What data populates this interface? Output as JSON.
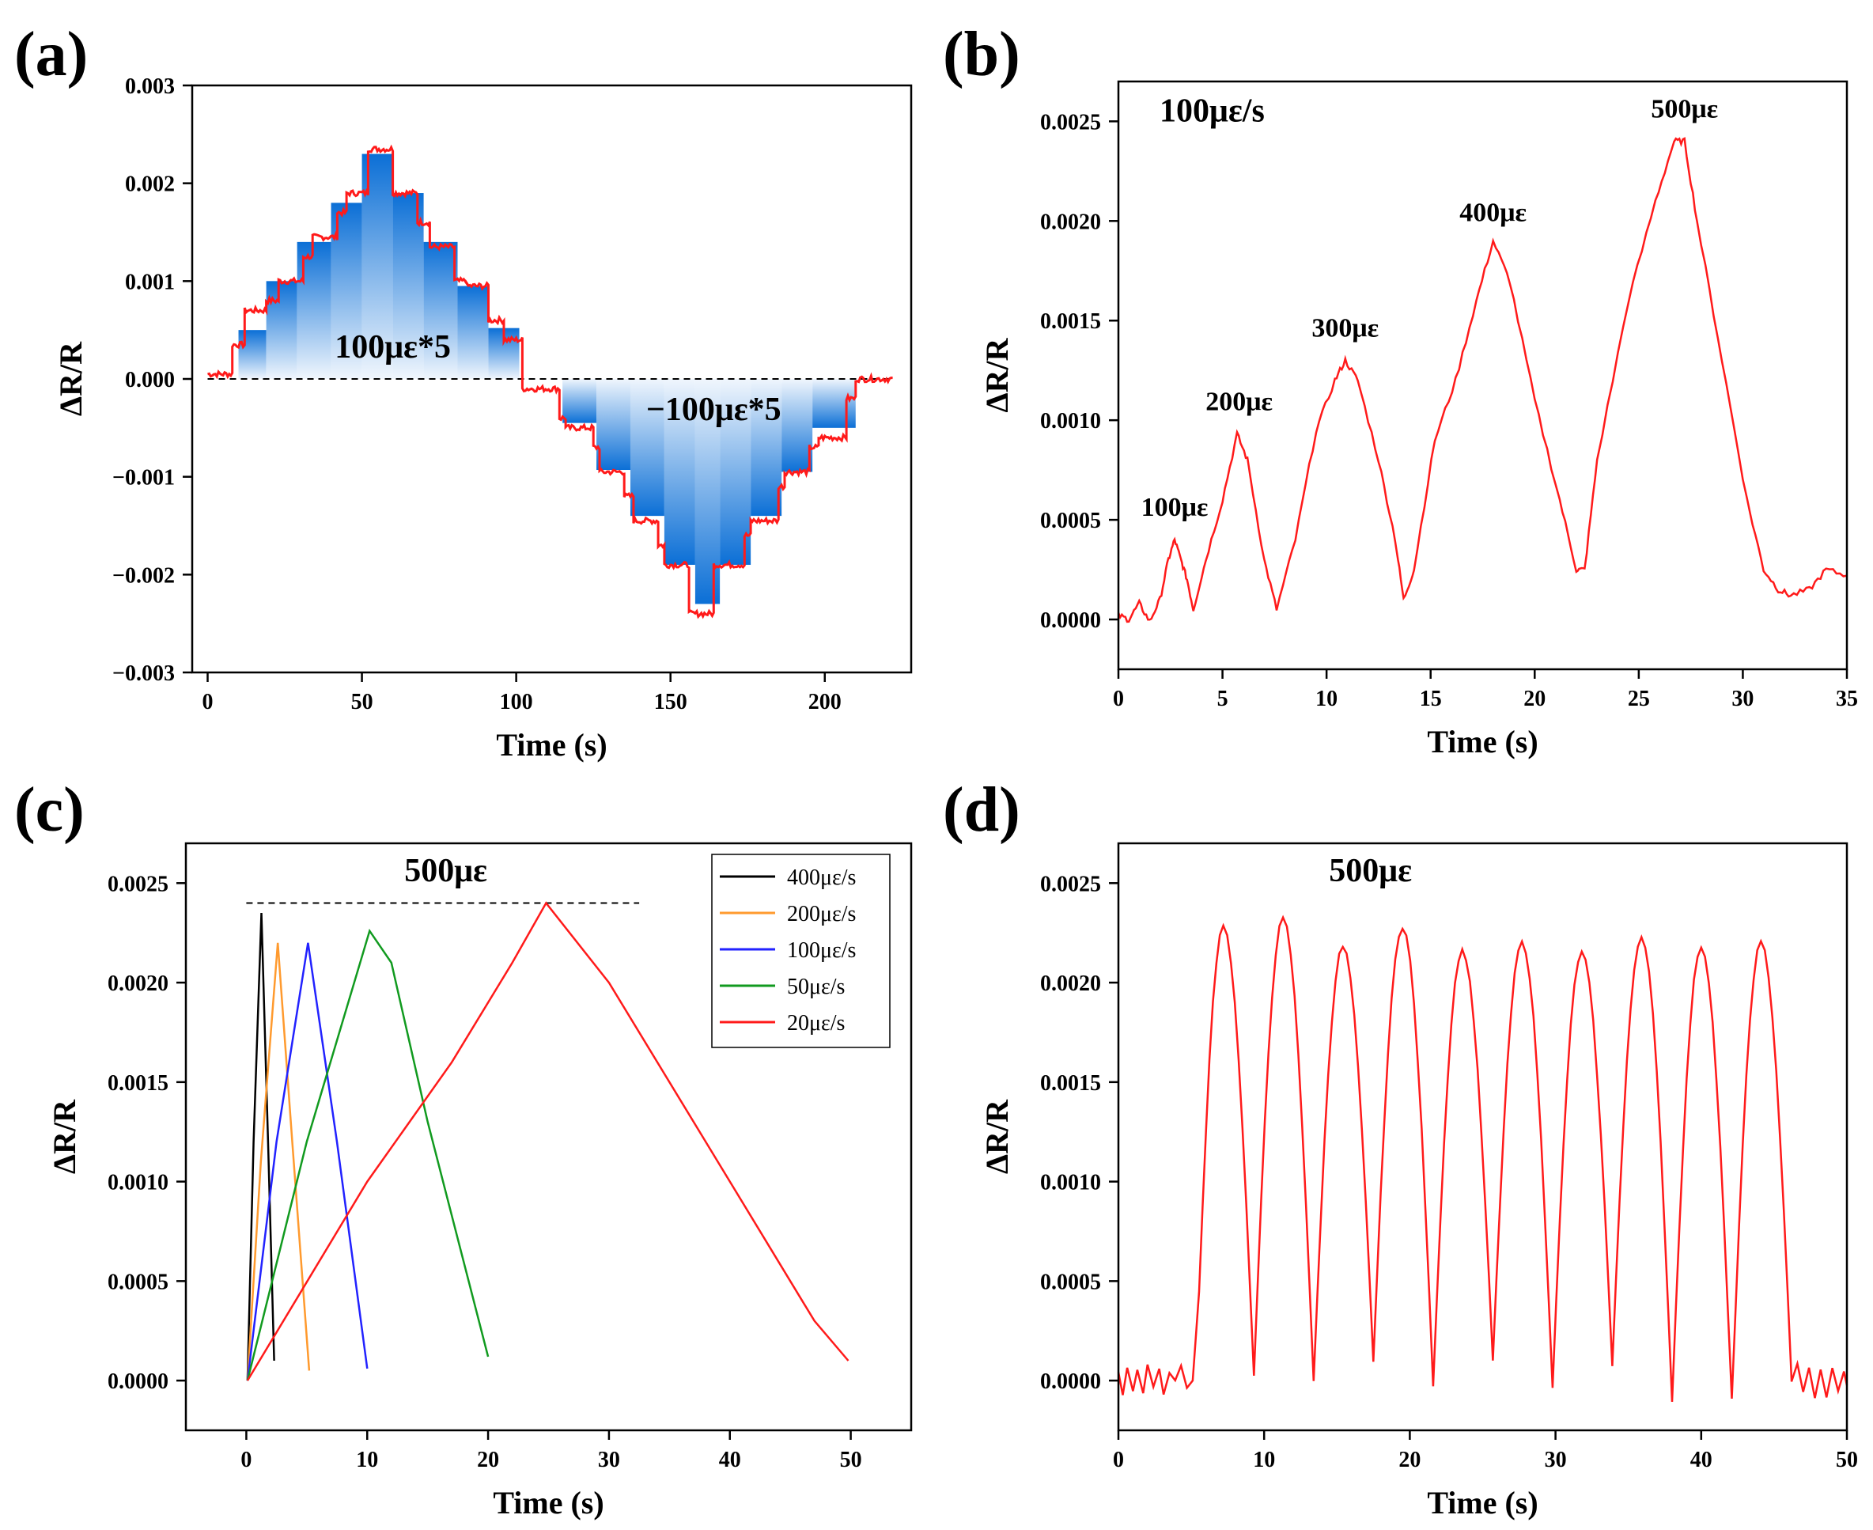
{
  "colors": {
    "red": "#ff1a1a",
    "blue_dark": "#0b6fd6",
    "blue_light": "#dce9f8",
    "black": "#000000",
    "orange": "#ff9a2e",
    "blue_line": "#2222ff",
    "green": "#119a1f"
  },
  "chart_data": [
    {
      "id": "a",
      "panel_label": "(a)",
      "type": "line",
      "title": "",
      "xlabel": "Time (s)",
      "ylabel": "ΔR/R",
      "xlim": [
        -5,
        228
      ],
      "ylim": [
        -0.003,
        0.003
      ],
      "xticks": [
        0,
        50,
        100,
        150,
        200
      ],
      "xtick_labels": [
        "0",
        "50",
        "100",
        "150",
        "200"
      ],
      "yticks": [
        -0.003,
        -0.002,
        -0.001,
        0.0,
        0.001,
        0.002,
        0.003
      ],
      "ytick_labels": [
        "−0.003",
        "−0.002",
        "−0.001",
        "0.000",
        "0.001",
        "0.002",
        "0.003"
      ],
      "step_levels": [
        {
          "t0": 0,
          "t1": 8,
          "v": 5e-05
        },
        {
          "t0": 8,
          "t1": 12,
          "v": 0.00035
        },
        {
          "t0": 12,
          "t1": 19,
          "v": 0.0007
        },
        {
          "t0": 19,
          "t1": 23,
          "v": 0.0008
        },
        {
          "t0": 23,
          "t1": 31,
          "v": 0.001
        },
        {
          "t0": 31,
          "t1": 34,
          "v": 0.00125
        },
        {
          "t0": 34,
          "t1": 42,
          "v": 0.00145
        },
        {
          "t0": 42,
          "t1": 45,
          "v": 0.0017
        },
        {
          "t0": 45,
          "t1": 52,
          "v": 0.0019
        },
        {
          "t0": 52,
          "t1": 60,
          "v": 0.00235
        },
        {
          "t0": 60,
          "t1": 68,
          "v": 0.0019
        },
        {
          "t0": 68,
          "t1": 72,
          "v": 0.0016
        },
        {
          "t0": 72,
          "t1": 80,
          "v": 0.00135
        },
        {
          "t0": 80,
          "t1": 84,
          "v": 0.001
        },
        {
          "t0": 84,
          "t1": 91,
          "v": 0.00095
        },
        {
          "t0": 91,
          "t1": 96,
          "v": 0.0006
        },
        {
          "t0": 96,
          "t1": 102,
          "v": 0.0004
        },
        {
          "t0": 102,
          "t1": 114,
          "v": -0.0001
        },
        {
          "t0": 114,
          "t1": 116,
          "v": -0.0004
        },
        {
          "t0": 116,
          "t1": 125,
          "v": -0.0005
        },
        {
          "t0": 125,
          "t1": 127,
          "v": -0.0007
        },
        {
          "t0": 127,
          "t1": 135,
          "v": -0.00095
        },
        {
          "t0": 135,
          "t1": 138,
          "v": -0.0012
        },
        {
          "t0": 138,
          "t1": 146,
          "v": -0.00145
        },
        {
          "t0": 146,
          "t1": 148,
          "v": -0.0017
        },
        {
          "t0": 148,
          "t1": 156,
          "v": -0.0019
        },
        {
          "t0": 156,
          "t1": 164,
          "v": -0.0024
        },
        {
          "t0": 164,
          "t1": 174,
          "v": -0.0019
        },
        {
          "t0": 174,
          "t1": 176,
          "v": -0.0016
        },
        {
          "t0": 176,
          "t1": 185,
          "v": -0.00145
        },
        {
          "t0": 185,
          "t1": 187,
          "v": -0.0011
        },
        {
          "t0": 187,
          "t1": 195,
          "v": -0.00095
        },
        {
          "t0": 195,
          "t1": 198,
          "v": -0.0007
        },
        {
          "t0": 198,
          "t1": 207,
          "v": -0.0006
        },
        {
          "t0": 207,
          "t1": 210,
          "v": -0.0002
        },
        {
          "t0": 210,
          "t1": 222,
          "v": 0.0
        }
      ],
      "fill_positive": [
        {
          "t0": 10,
          "t1": 19,
          "v": 0.0005
        },
        {
          "t0": 19,
          "t1": 29,
          "v": 0.001
        },
        {
          "t0": 29,
          "t1": 40,
          "v": 0.0014
        },
        {
          "t0": 40,
          "t1": 50,
          "v": 0.0018
        },
        {
          "t0": 50,
          "t1": 60,
          "v": 0.0023
        },
        {
          "t0": 60,
          "t1": 70,
          "v": 0.0019
        },
        {
          "t0": 70,
          "t1": 81,
          "v": 0.0014
        },
        {
          "t0": 81,
          "t1": 91,
          "v": 0.00095
        },
        {
          "t0": 91,
          "t1": 101,
          "v": 0.00052
        }
      ],
      "fill_negative": [
        {
          "t0": 115,
          "t1": 126,
          "v": -0.00045
        },
        {
          "t0": 126,
          "t1": 137,
          "v": -0.00093
        },
        {
          "t0": 137,
          "t1": 148,
          "v": -0.0014
        },
        {
          "t0": 148,
          "t1": 158,
          "v": -0.0019
        },
        {
          "t0": 158,
          "t1": 166,
          "v": -0.0023
        },
        {
          "t0": 166,
          "t1": 176,
          "v": -0.0019
        },
        {
          "t0": 176,
          "t1": 186,
          "v": -0.0014
        },
        {
          "t0": 186,
          "t1": 196,
          "v": -0.00095
        },
        {
          "t0": 196,
          "t1": 210,
          "v": -0.0005
        }
      ],
      "baseline": {
        "y": 0.0,
        "x0": 0,
        "x1": 222
      },
      "annotations": [
        {
          "text": "100με*5",
          "x": 60,
          "y": 0.00022
        },
        {
          "text": "−100με*5",
          "x": 164,
          "y": -0.00042
        }
      ]
    },
    {
      "id": "b",
      "panel_label": "(b)",
      "type": "line",
      "title": "",
      "xlabel": "Time (s)",
      "ylabel": "ΔR/R",
      "xlim": [
        0,
        35
      ],
      "ylim": [
        -0.00025,
        0.0027
      ],
      "xticks": [
        0,
        5,
        10,
        15,
        20,
        25,
        30,
        35
      ],
      "xtick_labels": [
        "0",
        "5",
        "10",
        "15",
        "20",
        "25",
        "30",
        "35"
      ],
      "yticks": [
        0.0,
        0.0005,
        0.001,
        0.0015,
        0.002,
        0.0025
      ],
      "ytick_labels": [
        "0.0000",
        "0.0005",
        "0.0010",
        "0.0015",
        "0.0020",
        "0.0025"
      ],
      "series": [
        {
          "name": "100με/s",
          "color": "#ff1a1a",
          "x": [
            0,
            0.5,
            1.0,
            1.5,
            2.0,
            2.4,
            2.7,
            3.0,
            3.3,
            3.6,
            4.2,
            5.0,
            5.7,
            6.2,
            7.0,
            7.6,
            8.5,
            9.5,
            10.4,
            10.9,
            11.5,
            12.5,
            13.3,
            13.7,
            14.2,
            15.2,
            16.2,
            17.2,
            18.0,
            18.8,
            20.0,
            21.2,
            22.0,
            22.4,
            23.0,
            24.5,
            25.8,
            26.7,
            27.2,
            27.8,
            29.0,
            30.2,
            31.0,
            31.7,
            32.3,
            33.2,
            34.0,
            35.0
          ],
          "y": [
            2e-05,
            0.0,
            8e-05,
            -1e-05,
            0.0001,
            0.0003,
            0.0004,
            0.0003,
            0.0002,
            5e-05,
            0.0003,
            0.0006,
            0.00093,
            0.0008,
            0.0003,
            5e-05,
            0.0004,
            0.00095,
            0.0012,
            0.0013,
            0.0012,
            0.0008,
            0.0004,
            0.0001,
            0.00025,
            0.0009,
            0.0012,
            0.0016,
            0.0019,
            0.0017,
            0.0011,
            0.0006,
            0.00025,
            0.00025,
            0.0008,
            0.0016,
            0.0021,
            0.0024,
            0.0024,
            0.002,
            0.0013,
            0.0006,
            0.00025,
            0.00015,
            0.00012,
            0.00015,
            0.00025,
            0.00022
          ]
        }
      ],
      "annotations": [
        {
          "text": "100με/s",
          "x": 4.5,
          "y": 0.0025,
          "big": true
        },
        {
          "text": "100με",
          "x": 2.7,
          "y": 0.00052
        },
        {
          "text": "200με",
          "x": 5.8,
          "y": 0.00105
        },
        {
          "text": "300με",
          "x": 10.9,
          "y": 0.00142
        },
        {
          "text": "400με",
          "x": 18.0,
          "y": 0.002
        },
        {
          "text": "500με",
          "x": 27.2,
          "y": 0.00252
        }
      ]
    },
    {
      "id": "c",
      "panel_label": "(c)",
      "type": "line",
      "title": "",
      "xlabel": "Time (s)",
      "ylabel": "ΔR/R",
      "xlim": [
        -5,
        55
      ],
      "ylim": [
        -0.00025,
        0.0027
      ],
      "xticks": [
        0,
        10,
        20,
        30,
        40,
        50
      ],
      "xtick_labels": [
        "0",
        "10",
        "20",
        "30",
        "40",
        "50"
      ],
      "yticks": [
        0.0,
        0.0005,
        0.001,
        0.0015,
        0.002,
        0.0025
      ],
      "ytick_labels": [
        "0.0000",
        "0.0005",
        "0.0010",
        "0.0015",
        "0.0020",
        "0.0025"
      ],
      "legend": {
        "position": "top-right"
      },
      "series": [
        {
          "name": "400με/s",
          "color": "#000000",
          "x": [
            0.1,
            0.6,
            1.25,
            1.8,
            2.3
          ],
          "y": [
            0.0,
            0.0012,
            0.00235,
            0.0012,
            0.0001
          ]
        },
        {
          "name": "200με/s",
          "color": "#ff9a2e",
          "x": [
            0.1,
            1.2,
            2.6,
            3.8,
            5.2
          ],
          "y": [
            0.0,
            0.0011,
            0.0022,
            0.0012,
            5e-05
          ]
        },
        {
          "name": "100με/s",
          "color": "#2222ff",
          "x": [
            0.1,
            2.5,
            5.1,
            7.5,
            10.0
          ],
          "y": [
            0.0,
            0.0012,
            0.0022,
            0.0012,
            6e-05
          ]
        },
        {
          "name": "50με/s",
          "color": "#119a1f",
          "x": [
            0.1,
            5.0,
            10.2,
            12.0,
            15.0,
            20.0
          ],
          "y": [
            0.0,
            0.0012,
            0.00226,
            0.0021,
            0.0013,
            0.00012
          ]
        },
        {
          "name": "20με/s",
          "color": "#ff1a1a",
          "x": [
            0.1,
            10.0,
            17.0,
            22.0,
            24.8,
            30.0,
            40.0,
            47.0,
            49.8
          ],
          "y": [
            0.0,
            0.001,
            0.0016,
            0.0021,
            0.0024,
            0.002,
            0.001,
            0.0003,
            0.0001
          ]
        }
      ],
      "reference_line": {
        "y": 0.0024,
        "x0": 0,
        "x1": 32.5
      },
      "annotations": [
        {
          "text": "500με",
          "x": 16.5,
          "y": 0.00251
        }
      ]
    },
    {
      "id": "d",
      "panel_label": "(d)",
      "type": "line",
      "title": "",
      "xlabel": "Time (s)",
      "ylabel": "ΔR/R",
      "xlim": [
        0,
        50
      ],
      "ylim": [
        -0.00025,
        0.0027
      ],
      "xticks": [
        0,
        10,
        20,
        30,
        40,
        50
      ],
      "xtick_labels": [
        "0",
        "10",
        "20",
        "30",
        "40",
        "50"
      ],
      "yticks": [
        0.0,
        0.0005,
        0.001,
        0.0015,
        0.002,
        0.0025
      ],
      "ytick_labels": [
        "0.0000",
        "0.0005",
        "0.0010",
        "0.0015",
        "0.0020",
        "0.0025"
      ],
      "series": [
        {
          "name": "500με",
          "color": "#ff1a1a",
          "baseline_start": [
            0,
            0.3,
            0.6,
            1.0,
            1.3,
            1.7,
            2.0,
            2.4,
            2.8,
            3.1,
            3.5,
            3.9,
            4.3,
            4.7,
            5.1
          ],
          "baseline_start_y": [
            5e-05,
            -8e-05,
            7e-05,
            -5e-05,
            6e-05,
            -6e-05,
            8e-05,
            -4e-05,
            5e-05,
            -6e-05,
            4e-05,
            0.0,
            8e-05,
            -3e-05,
            0.0
          ],
          "peaks_x": [
            7.2,
            11.3,
            15.4,
            19.5,
            23.6,
            27.7,
            31.8,
            35.9,
            40.0,
            44.1
          ],
          "peaks_y": [
            0.00228,
            0.00232,
            0.00218,
            0.00228,
            0.00216,
            0.0022,
            0.00215,
            0.00223,
            0.00218,
            0.0022
          ],
          "valleys_x": [
            5.3,
            9.3,
            13.4,
            17.5,
            21.6,
            25.7,
            29.8,
            33.9,
            38.0,
            42.1,
            46.2
          ],
          "valleys_y": [
            0.0,
            2e-05,
            -1e-05,
            0.0001,
            -2e-05,
            0.0001,
            -3e-05,
            8e-05,
            -0.0001,
            -0.0001,
            0.0
          ],
          "baseline_end": [
            46.2,
            46.6,
            47.0,
            47.4,
            47.8,
            48.2,
            48.6,
            49.0,
            49.4,
            49.8,
            50.0
          ],
          "baseline_end_y": [
            0.0,
            8e-05,
            -6e-05,
            6e-05,
            -8e-05,
            5e-05,
            -9e-05,
            7e-05,
            -5e-05,
            4e-05,
            -2e-05
          ]
        }
      ],
      "annotations": [
        {
          "text": "500με",
          "x": 17.3,
          "y": 0.00251
        }
      ]
    }
  ]
}
